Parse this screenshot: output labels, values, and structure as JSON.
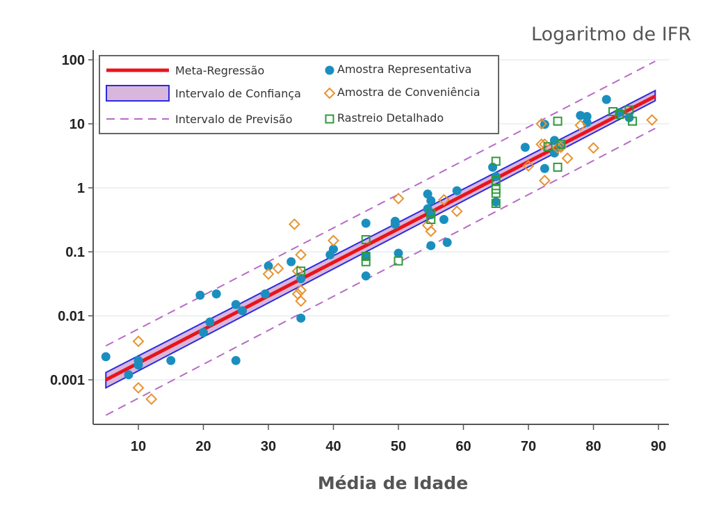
{
  "chart_data": {
    "type": "scatter",
    "title": "Logaritmo de IFR",
    "xlabel": "Média de Idade",
    "ylabel": "",
    "xlim": [
      4,
      92
    ],
    "ylim": [
      0.0002,
      150
    ],
    "yscale": "log",
    "x_ticks": [
      10,
      20,
      30,
      40,
      50,
      60,
      70,
      80,
      90
    ],
    "x_tick_labels": [
      "10",
      "20",
      "30",
      "40",
      "50",
      "60",
      "70",
      "80",
      "90"
    ],
    "y_ticks": [
      0.001,
      0.01,
      0.1,
      1,
      10,
      100
    ],
    "y_tick_labels": [
      "0.001",
      "0.01",
      "0.1",
      "1",
      "10",
      "100"
    ],
    "grid": "horizontal",
    "legend_position": "top-left",
    "legend": [
      {
        "label": "Meta-Regressão",
        "kind": "line",
        "color": "#e8141c"
      },
      {
        "label": "Intervalo de Confiança",
        "kind": "band",
        "color": "#2a2adf",
        "fill": "#d9b6dc"
      },
      {
        "label": "Intervalo de Previsão",
        "kind": "dashed",
        "color": "#b86ac6"
      },
      {
        "label": "Amostra Representativa",
        "kind": "circle",
        "color": "#1a8fbf"
      },
      {
        "label": "Amostra de Conveniência",
        "kind": "diamond",
        "color": "#e8922e"
      },
      {
        "label": "Rastreio Detalhado",
        "kind": "square",
        "color": "#2e9a3a"
      }
    ],
    "regression": {
      "name": "Meta-Regressão",
      "x": [
        5,
        89.5
      ],
      "y": [
        0.001,
        27
      ],
      "ci_lower": [
        0.00075,
        23
      ],
      "ci_upper": [
        0.0013,
        33
      ],
      "pi_lower": [
        0.00028,
        8.5
      ],
      "pi_upper": [
        0.0034,
        95
      ]
    },
    "series": [
      {
        "name": "Amostra Representativa",
        "marker": "circle",
        "color": "#1a8fbf",
        "points": [
          [
            5,
            0.0023
          ],
          [
            8.5,
            0.0012
          ],
          [
            10,
            0.0017
          ],
          [
            10,
            0.002
          ],
          [
            15,
            0.002
          ],
          [
            19.5,
            0.021
          ],
          [
            20,
            0.0055
          ],
          [
            21,
            0.008
          ],
          [
            22,
            0.022
          ],
          [
            25,
            0.015
          ],
          [
            25,
            0.002
          ],
          [
            26,
            0.012
          ],
          [
            29.5,
            0.022
          ],
          [
            30,
            0.06
          ],
          [
            33.5,
            0.07
          ],
          [
            35,
            0.0092
          ],
          [
            35,
            0.038
          ],
          [
            39.5,
            0.09
          ],
          [
            40,
            0.11
          ],
          [
            45,
            0.28
          ],
          [
            45,
            0.085
          ],
          [
            45,
            0.042
          ],
          [
            49.5,
            0.3
          ],
          [
            49.5,
            0.27
          ],
          [
            50,
            0.095
          ],
          [
            54.5,
            0.8
          ],
          [
            54.5,
            0.47
          ],
          [
            55,
            0.63
          ],
          [
            55,
            0.38
          ],
          [
            55,
            0.125
          ],
          [
            57,
            0.32
          ],
          [
            57.5,
            0.14
          ],
          [
            59,
            0.9
          ],
          [
            64.5,
            2.1
          ],
          [
            65,
            1.5
          ],
          [
            65,
            0.6
          ],
          [
            69.5,
            4.3
          ],
          [
            72.5,
            9.8
          ],
          [
            72.5,
            2.0
          ],
          [
            74,
            5.5
          ],
          [
            74,
            3.5
          ],
          [
            75,
            4.5
          ],
          [
            78,
            13.5
          ],
          [
            79,
            13
          ],
          [
            79,
            10.5
          ],
          [
            82,
            24
          ],
          [
            84,
            15
          ],
          [
            85.5,
            12.5
          ]
        ]
      },
      {
        "name": "Amostra de Conveniência",
        "marker": "diamond",
        "color": "#e8922e",
        "points": [
          [
            10,
            0.004
          ],
          [
            10,
            0.00075
          ],
          [
            12,
            0.0005
          ],
          [
            30,
            0.045
          ],
          [
            31.5,
            0.055
          ],
          [
            34,
            0.27
          ],
          [
            34.5,
            0.05
          ],
          [
            35,
            0.09
          ],
          [
            34.5,
            0.022
          ],
          [
            35,
            0.025
          ],
          [
            35,
            0.017
          ],
          [
            40,
            0.15
          ],
          [
            50,
            0.68
          ],
          [
            54.5,
            0.26
          ],
          [
            55,
            0.21
          ],
          [
            57,
            0.65
          ],
          [
            59,
            0.43
          ],
          [
            70,
            2.2
          ],
          [
            72,
            10
          ],
          [
            72,
            4.8
          ],
          [
            72.5,
            4.8
          ],
          [
            72.5,
            1.3
          ],
          [
            74.5,
            4.2
          ],
          [
            75,
            4.3
          ],
          [
            76,
            2.9
          ],
          [
            78,
            9.5
          ],
          [
            80,
            4.2
          ],
          [
            89,
            11.5
          ]
        ]
      },
      {
        "name": "Rastreio Detalhado",
        "marker": "square",
        "color": "#2e9a3a",
        "points": [
          [
            35,
            0.05
          ],
          [
            45,
            0.155
          ],
          [
            45,
            0.085
          ],
          [
            45,
            0.07
          ],
          [
            50,
            0.072
          ],
          [
            55,
            0.4
          ],
          [
            55,
            0.32
          ],
          [
            65,
            2.6
          ],
          [
            65,
            1.3
          ],
          [
            65,
            0.95
          ],
          [
            65,
            0.82
          ],
          [
            65,
            0.57
          ],
          [
            73,
            4.4
          ],
          [
            74.5,
            11
          ],
          [
            74.5,
            2.1
          ],
          [
            75,
            4.8
          ],
          [
            83,
            15.5
          ],
          [
            84,
            14
          ],
          [
            85.5,
            16.5
          ],
          [
            86,
            11
          ]
        ]
      }
    ]
  }
}
